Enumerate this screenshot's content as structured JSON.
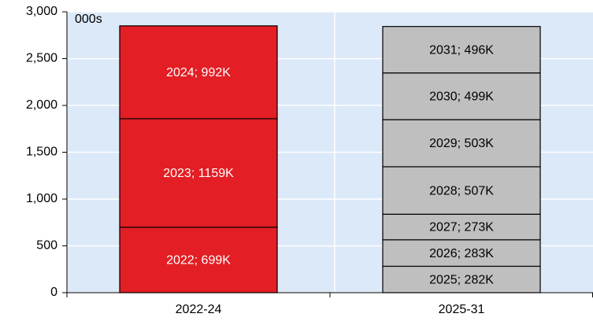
{
  "chart_data": {
    "type": "stacked_bar",
    "unit_label": "000s",
    "categories": [
      "2022-24",
      "2025-31"
    ],
    "stacks": [
      {
        "color": "#e31e24",
        "label_color": "#ffffff",
        "values": [
          699,
          1159,
          992
        ],
        "value_labels": [
          "2022; 699K",
          "2023; 1159K",
          "2024; 992K"
        ]
      },
      {
        "color": "#bfbfbf",
        "label_color": "#000000",
        "values": [
          282,
          283,
          273,
          507,
          503,
          499,
          496
        ],
        "value_labels": [
          "2025; 282K",
          "2026; 283K",
          "2027; 273K",
          "2028; 507K",
          "2029; 503K",
          "2030; 499K",
          "2031; 496K"
        ]
      }
    ],
    "ylim": [
      0,
      3000
    ],
    "yticks": [
      0,
      500,
      {
        "value": 1000,
        "label": "1,000"
      },
      {
        "value": 1500,
        "label": "1,500"
      },
      {
        "value": 2000,
        "label": "2,000"
      },
      {
        "value": 2500,
        "label": "2,500"
      },
      {
        "value": 3000,
        "label": "3,000"
      }
    ],
    "grid": true
  }
}
